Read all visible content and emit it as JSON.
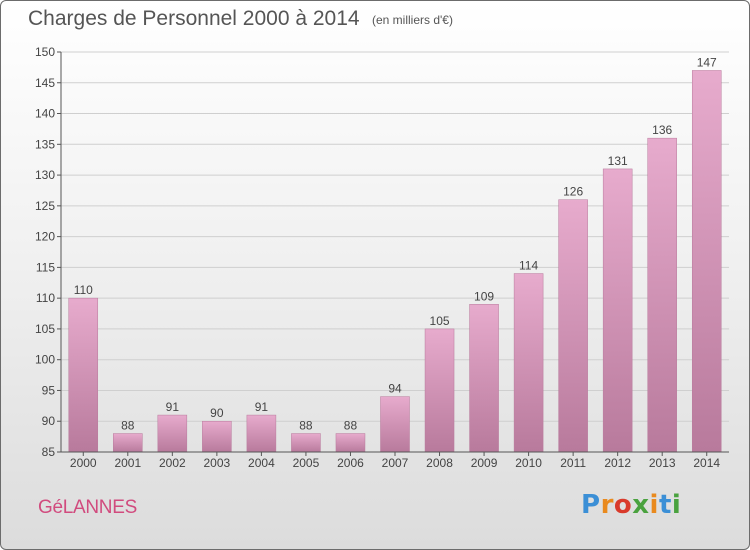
{
  "header": {
    "title": "Charges de Personnel 2000 à 2014",
    "subtitle": "(en milliers d'€)"
  },
  "footer": {
    "location": "GéLANNES",
    "logo_text": "Proxiti"
  },
  "colors": {
    "bar_light": "#e7abcd",
    "bar_dark": "#b87a9c",
    "location": "#d14b7e",
    "grid": "#cfcfcf",
    "axis": "#555555",
    "logo": [
      "#3b8fd6",
      "#e98a1e",
      "#d93a2b",
      "#4aa23f",
      "#e98a1e",
      "#3b8fd6",
      "#4aa23f"
    ]
  },
  "chart_data": {
    "type": "bar",
    "title": "Charges de Personnel 2000 à 2014",
    "subtitle": "(en milliers d'€)",
    "categories": [
      "2000",
      "2001",
      "2002",
      "2003",
      "2004",
      "2005",
      "2006",
      "2007",
      "2008",
      "2009",
      "2010",
      "2011",
      "2012",
      "2013",
      "2014"
    ],
    "values": [
      110,
      88,
      91,
      90,
      91,
      88,
      88,
      94,
      105,
      109,
      114,
      126,
      131,
      136,
      147
    ],
    "xlabel": "",
    "ylabel": "",
    "ylim": [
      85,
      150
    ],
    "yticks": [
      85,
      90,
      95,
      100,
      105,
      110,
      115,
      120,
      125,
      130,
      135,
      140,
      145,
      150
    ],
    "grid": true
  }
}
